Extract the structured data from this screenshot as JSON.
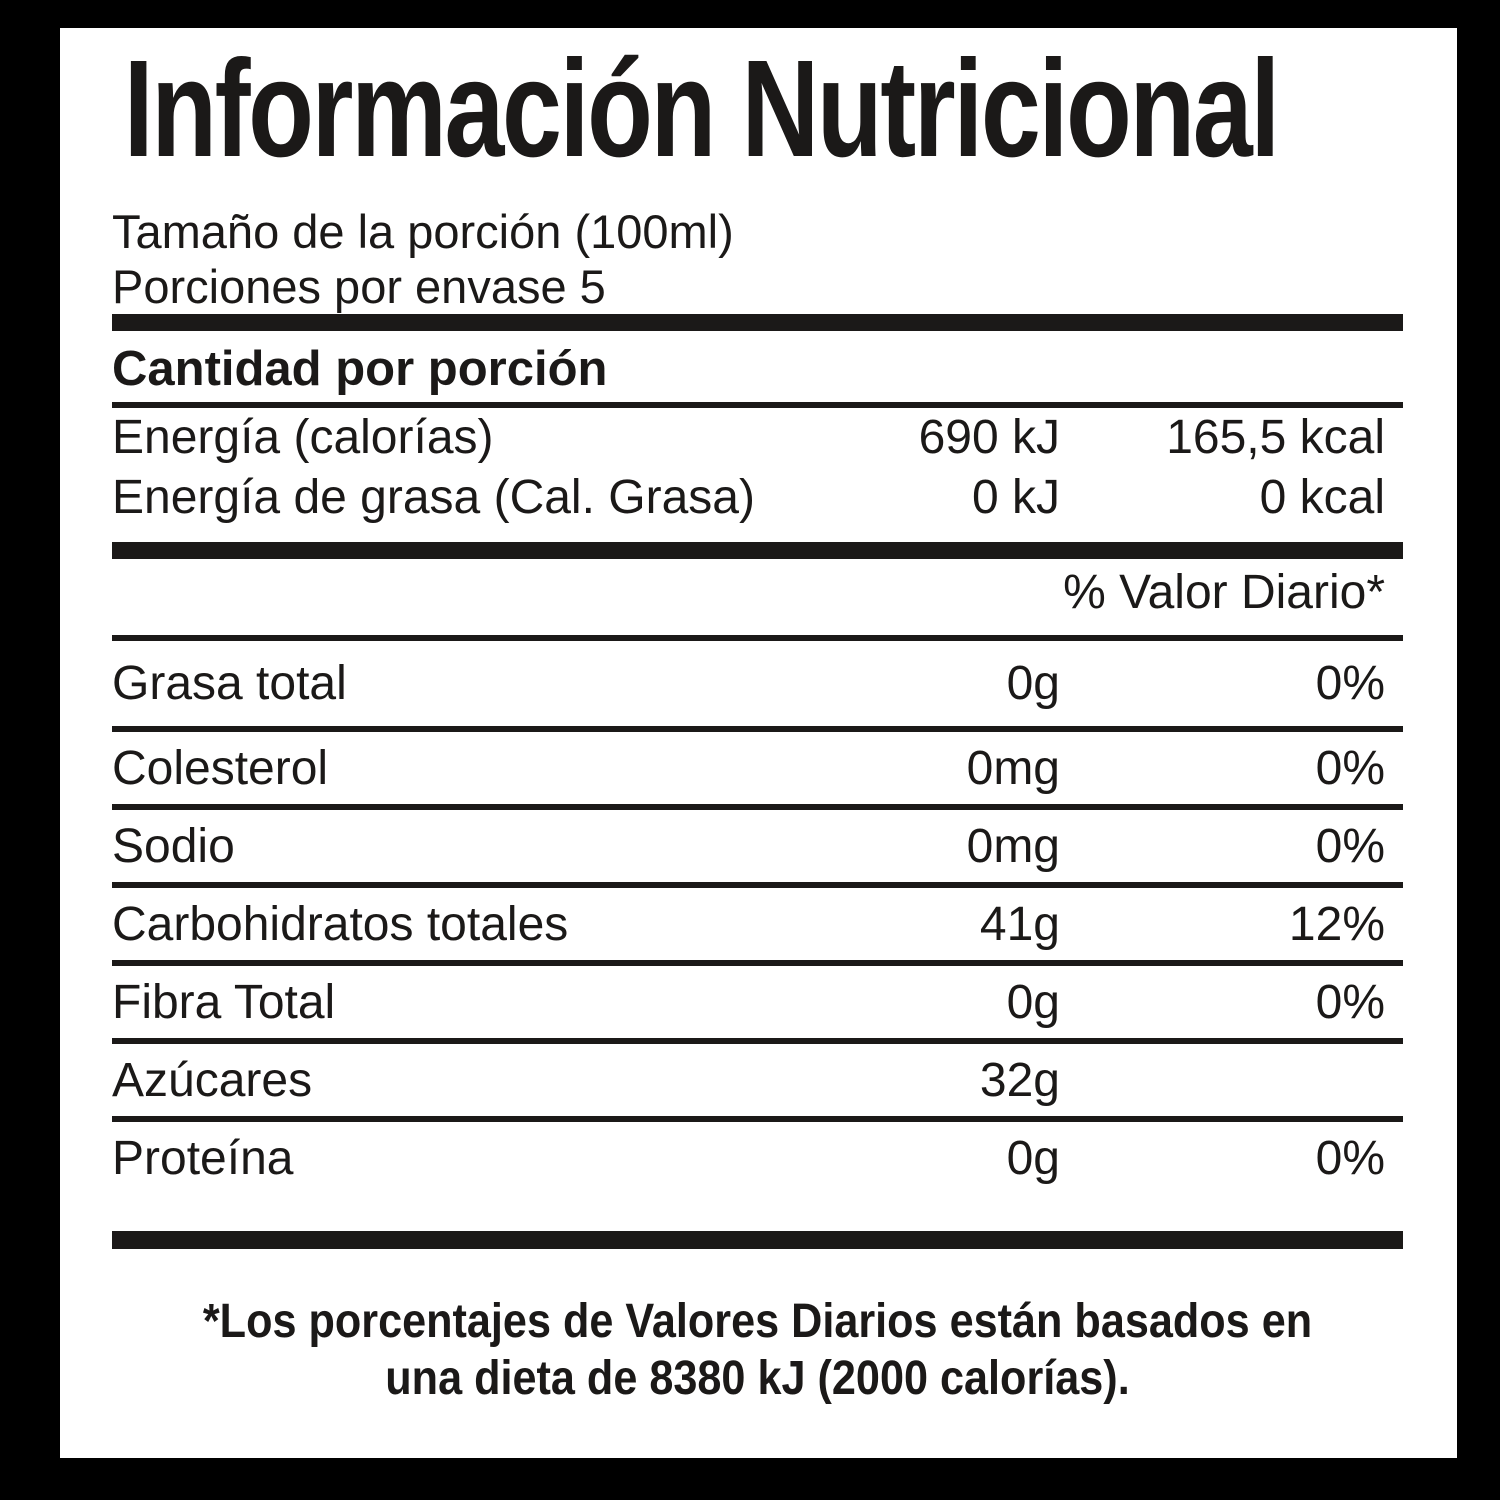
{
  "label": {
    "title": "Información Nutricional",
    "serving_size": "Tamaño de la porción (100ml)",
    "servings_per_container": "Porciones por envase 5",
    "amount_per_serving_header": "Cantidad por porción",
    "energy_rows": [
      {
        "name": "Energía (calorías)",
        "kj": "690 kJ",
        "kcal": "165,5 kcal"
      },
      {
        "name": "Energía de grasa (Cal. Grasa)",
        "kj": "0 kJ",
        "kcal": "0 kcal"
      }
    ],
    "daily_value_header": "% Valor Diario*",
    "nutrient_rows": [
      {
        "name": "Grasa total",
        "amount": "0g",
        "dv": "0%"
      },
      {
        "name": "Colesterol",
        "amount": "0mg",
        "dv": "0%"
      },
      {
        "name": "Sodio",
        "amount": "0mg",
        "dv": "0%"
      },
      {
        "name": "Carbohidratos totales",
        "amount": "41g",
        "dv": "12%"
      },
      {
        "name": "Fibra Total",
        "amount": "0g",
        "dv": "0%"
      },
      {
        "name": "Azúcares",
        "amount": "32g",
        "dv": ""
      },
      {
        "name": "Proteína",
        "amount": "0g",
        "dv": "0%"
      }
    ],
    "footnote_line1": "*Los porcentajes de Valores Diarios están basados en",
    "footnote_line2": "una dieta de 8380 kJ (2000 calorías).",
    "colors": {
      "background": "#000000",
      "panel": "#ffffff",
      "ink": "#1b1918"
    }
  }
}
